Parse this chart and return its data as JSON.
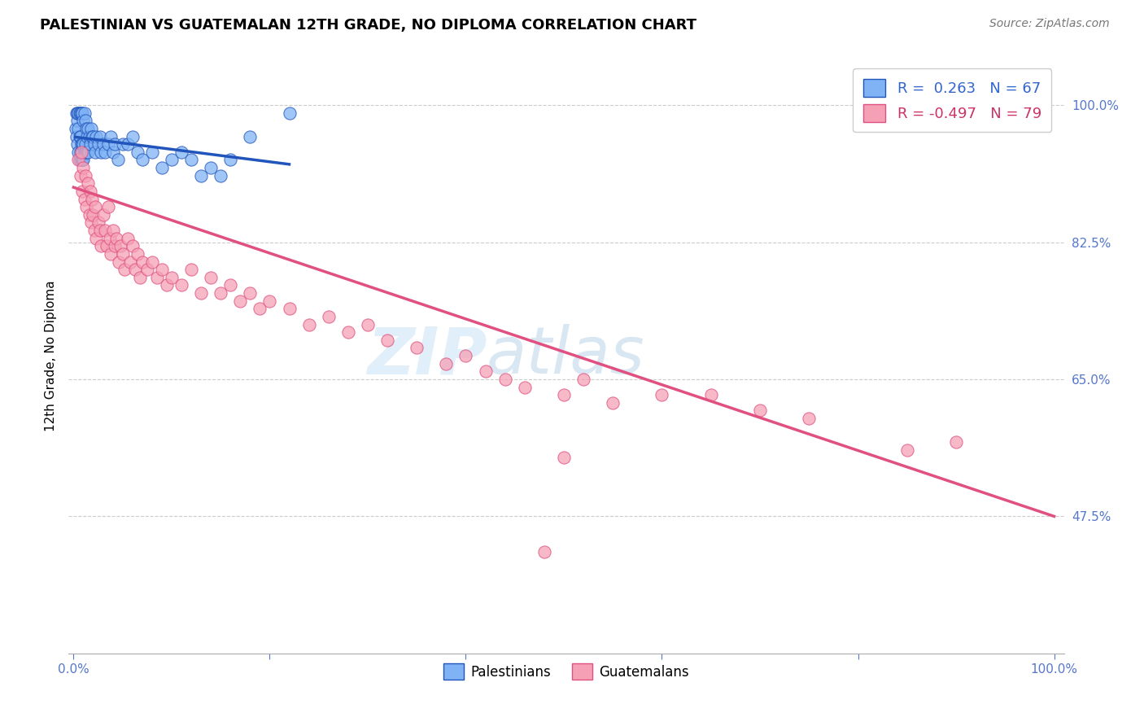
{
  "title": "PALESTINIAN VS GUATEMALAN 12TH GRADE, NO DIPLOMA CORRELATION CHART",
  "source": "Source: ZipAtlas.com",
  "ylabel": "12th Grade, No Diploma",
  "palestinian_color": "#7fb3f5",
  "guatemalan_color": "#f5a0b5",
  "trendline_palestinian_color": "#2255bb",
  "trendline_guatemalan_color": "#e05080",
  "legend_r_palestinian": "R =  0.263",
  "legend_n_palestinian": "N = 67",
  "legend_r_guatemalan": "R = -0.497",
  "legend_n_guatemalan": "N = 79",
  "title_fontsize": 13,
  "source_fontsize": 10,
  "axis_label_fontsize": 11,
  "tick_fontsize": 11,
  "ytick_labels": [
    "47.5%",
    "65.0%",
    "82.5%",
    "100.0%"
  ],
  "ytick_vals": [
    0.475,
    0.65,
    0.825,
    1.0
  ],
  "palestinian_x": [
    0.002,
    0.003,
    0.003,
    0.004,
    0.004,
    0.004,
    0.005,
    0.005,
    0.005,
    0.006,
    0.006,
    0.006,
    0.007,
    0.007,
    0.007,
    0.008,
    0.008,
    0.008,
    0.009,
    0.009,
    0.009,
    0.01,
    0.01,
    0.01,
    0.011,
    0.011,
    0.012,
    0.012,
    0.013,
    0.013,
    0.014,
    0.015,
    0.015,
    0.016,
    0.017,
    0.018,
    0.019,
    0.02,
    0.021,
    0.022,
    0.023,
    0.025,
    0.027,
    0.028,
    0.03,
    0.032,
    0.035,
    0.038,
    0.04,
    0.042,
    0.045,
    0.05,
    0.055,
    0.06,
    0.065,
    0.07,
    0.08,
    0.09,
    0.1,
    0.11,
    0.12,
    0.13,
    0.14,
    0.15,
    0.16,
    0.18,
    0.22
  ],
  "palestinian_y": [
    0.97,
    0.99,
    0.96,
    0.98,
    0.95,
    0.99,
    0.97,
    0.94,
    0.99,
    0.96,
    0.93,
    0.99,
    0.96,
    0.94,
    0.99,
    0.95,
    0.93,
    0.99,
    0.95,
    0.93,
    0.99,
    0.95,
    0.93,
    0.98,
    0.94,
    0.99,
    0.95,
    0.98,
    0.94,
    0.97,
    0.96,
    0.94,
    0.97,
    0.96,
    0.95,
    0.97,
    0.96,
    0.96,
    0.95,
    0.94,
    0.96,
    0.95,
    0.96,
    0.94,
    0.95,
    0.94,
    0.95,
    0.96,
    0.94,
    0.95,
    0.93,
    0.95,
    0.95,
    0.96,
    0.94,
    0.93,
    0.94,
    0.92,
    0.93,
    0.94,
    0.93,
    0.91,
    0.92,
    0.91,
    0.93,
    0.96,
    0.99
  ],
  "guatemalan_x": [
    0.005,
    0.007,
    0.008,
    0.009,
    0.01,
    0.011,
    0.012,
    0.013,
    0.015,
    0.016,
    0.017,
    0.018,
    0.019,
    0.02,
    0.021,
    0.022,
    0.023,
    0.025,
    0.027,
    0.028,
    0.03,
    0.032,
    0.034,
    0.035,
    0.037,
    0.038,
    0.04,
    0.042,
    0.044,
    0.046,
    0.048,
    0.05,
    0.052,
    0.055,
    0.058,
    0.06,
    0.063,
    0.065,
    0.068,
    0.07,
    0.075,
    0.08,
    0.085,
    0.09,
    0.095,
    0.1,
    0.11,
    0.12,
    0.13,
    0.14,
    0.15,
    0.16,
    0.17,
    0.18,
    0.19,
    0.2,
    0.22,
    0.24,
    0.26,
    0.28,
    0.3,
    0.32,
    0.35,
    0.38,
    0.4,
    0.42,
    0.44,
    0.46,
    0.5,
    0.52,
    0.55,
    0.6,
    0.65,
    0.7,
    0.75,
    0.85,
    0.9,
    0.5,
    0.48
  ],
  "guatemalan_y": [
    0.93,
    0.91,
    0.94,
    0.89,
    0.92,
    0.88,
    0.91,
    0.87,
    0.9,
    0.86,
    0.89,
    0.85,
    0.88,
    0.86,
    0.84,
    0.87,
    0.83,
    0.85,
    0.84,
    0.82,
    0.86,
    0.84,
    0.82,
    0.87,
    0.83,
    0.81,
    0.84,
    0.82,
    0.83,
    0.8,
    0.82,
    0.81,
    0.79,
    0.83,
    0.8,
    0.82,
    0.79,
    0.81,
    0.78,
    0.8,
    0.79,
    0.8,
    0.78,
    0.79,
    0.77,
    0.78,
    0.77,
    0.79,
    0.76,
    0.78,
    0.76,
    0.77,
    0.75,
    0.76,
    0.74,
    0.75,
    0.74,
    0.72,
    0.73,
    0.71,
    0.72,
    0.7,
    0.69,
    0.67,
    0.68,
    0.66,
    0.65,
    0.64,
    0.63,
    0.65,
    0.62,
    0.63,
    0.63,
    0.61,
    0.6,
    0.56,
    0.57,
    0.55,
    0.43
  ]
}
